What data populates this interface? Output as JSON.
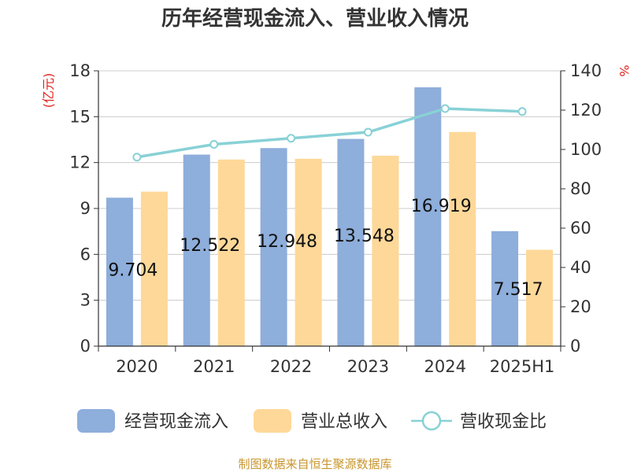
{
  "chart_data": {
    "type": "bar",
    "title": "历年经营现金流入、营业收入情况",
    "categories": [
      "2020",
      "2021",
      "2022",
      "2023",
      "2024",
      "2025H1"
    ],
    "left_axis": {
      "unit": "(亿元)",
      "ylim": [
        0,
        18
      ],
      "ticks": [
        "0",
        "3",
        "6",
        "9",
        "12",
        "15",
        "18"
      ]
    },
    "right_axis": {
      "unit": "%",
      "ylim": [
        0,
        140
      ],
      "ticks": [
        "0",
        "20",
        "40",
        "60",
        "80",
        "100",
        "120",
        "140"
      ]
    },
    "series": [
      {
        "name": "经营现金流入",
        "axis": "left",
        "kind": "bar",
        "color": "#8eaedb",
        "values": [
          9.704,
          12.522,
          12.948,
          13.548,
          16.919,
          7.517
        ],
        "labels": [
          "9.704",
          "12.522",
          "12.948",
          "13.548",
          "16.919",
          "7.517"
        ]
      },
      {
        "name": "营业总收入",
        "axis": "left",
        "kind": "bar",
        "color": "#fed898",
        "values": [
          10.1,
          12.2,
          12.25,
          12.45,
          14.0,
          6.3
        ]
      },
      {
        "name": "营收现金比",
        "axis": "right",
        "kind": "line",
        "color": "#88d1d6",
        "values": [
          96.1,
          102.6,
          105.7,
          108.8,
          120.8,
          119.3
        ]
      }
    ],
    "grid": true,
    "legend": "bottom"
  },
  "source": "制图数据来自恒生聚源数据库"
}
